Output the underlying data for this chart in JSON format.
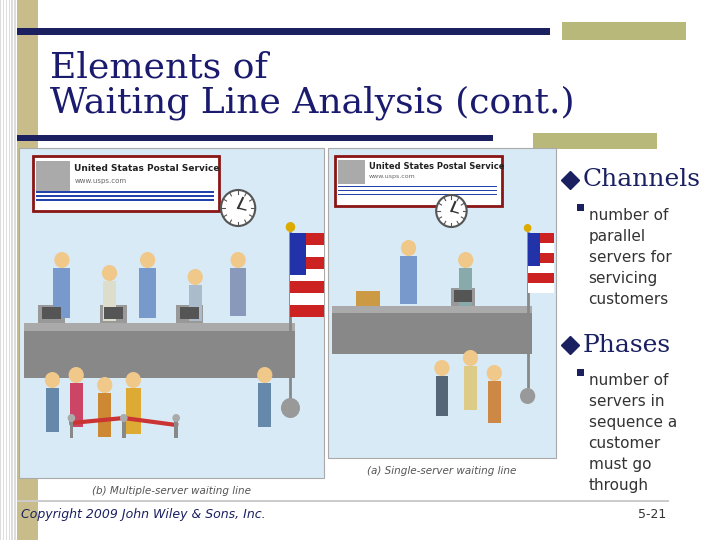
{
  "bg_color": "#ffffff",
  "slide_left_stripe_color": "#c8c8c8",
  "left_bar_color": "#c8bd8a",
  "title_line1": "Elements of",
  "title_line2": "Waiting Line Analysis (cont.)",
  "title_color": "#1a1a6e",
  "title_fontsize": 26,
  "dark_blue": "#1a2060",
  "olive": "#b8b87a",
  "bullet1_header": "Channels",
  "bullet1_sub": "number of\nparallel\nservers for\nservicing\ncustomers",
  "bullet2_header": "Phases",
  "bullet2_sub": "number of\nservers in\nsequence a\ncustomer\nmust go\nthrough",
  "bullet_color": "#1a2060",
  "bullet_header_fontsize": 18,
  "bullet_sub_fontsize": 11,
  "img_bg": "#d8eaf5",
  "caption1": "(b) Multiple-server waiting line",
  "caption2": "(a) Single-server waiting line",
  "copyright": "Copyright 2009 John Wiley & Sons, Inc.",
  "page_num": "5-21",
  "footer_fontsize": 9
}
